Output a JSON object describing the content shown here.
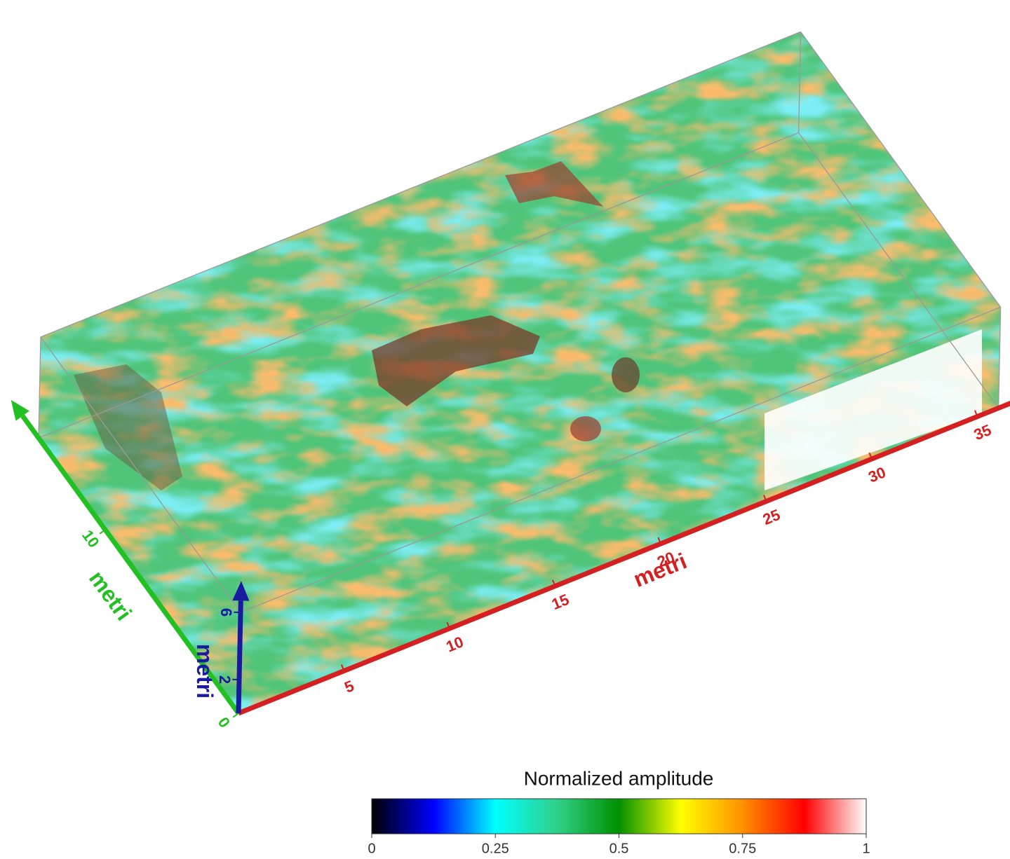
{
  "chart_data": {
    "type": "volume",
    "xlabel": "metri",
    "xcolor": "#d42020",
    "xlim": [
      0,
      36
    ],
    "xticks": [
      5,
      10,
      15,
      20,
      25,
      30,
      35
    ],
    "ylabel": "metri",
    "ycolor": "#22c022",
    "ylim": [
      0,
      15
    ],
    "yticks": [
      0,
      10
    ],
    "zlabel": "metri",
    "zcolor": "#1a1aa0",
    "zlim": [
      0,
      6
    ],
    "zticks": [
      2,
      6
    ],
    "colorbar": {
      "title": "Normalized amplitude",
      "lim": [
        0,
        1
      ],
      "ticks": [
        0,
        0.25,
        0.5,
        0.75,
        1
      ],
      "colors": [
        "#000000",
        "#0000ff",
        "#00ffff",
        "#30d08a",
        "#009000",
        "#ffff00",
        "#ff9000",
        "#ff0000",
        "#ffffff"
      ]
    }
  }
}
